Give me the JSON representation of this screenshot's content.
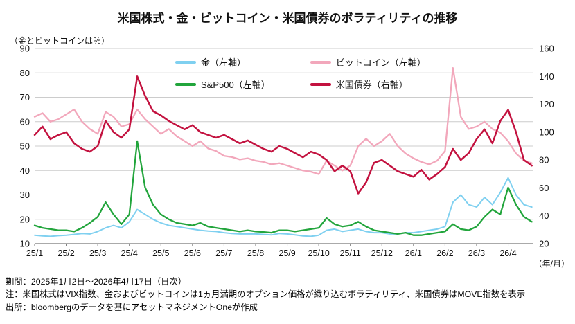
{
  "title": "米国株式・金・ビットコイン・米国債券のボラティリティの推移",
  "axis_note": "（金とビットコインは％）",
  "x_axis_unit": "（年/月）",
  "footer": {
    "line1": "期間：2025年1月2日～2026年4月17日（日次）",
    "line2": "注：米国株式はVIX指数、金およびビットコインは1ヵ月満期のオプション価格が織り込むボラティリティ、米国債券はMOVE指数を表示",
    "line3": "出所：bloombergのデータを基にアセットマネジメントOneが作成"
  },
  "chart_data": {
    "type": "line",
    "title": "米国株式・金・ビットコイン・米国債券のボラティリティの推移",
    "x_labels": [
      "25/1",
      "25/2",
      "25/3",
      "25/4",
      "25/5",
      "25/6",
      "25/7",
      "25/8",
      "25/9",
      "25/10",
      "25/11",
      "25/12",
      "26/1",
      "26/2",
      "26/3",
      "26/4"
    ],
    "points_per_month": 4,
    "left_axis": {
      "label": "（金とビットコインは％）",
      "min": 10,
      "max": 90,
      "ticks": [
        10,
        20,
        30,
        40,
        50,
        60,
        70,
        80,
        90
      ]
    },
    "right_axis": {
      "min": 20,
      "max": 160,
      "ticks": [
        20,
        40,
        60,
        80,
        100,
        120,
        140,
        160
      ]
    },
    "grid": "horizontal",
    "legend_position": "top-inside",
    "series": [
      {
        "key": "gold",
        "name": "金（左軸）",
        "axis": "left",
        "color": "#7fd0f0",
        "values": [
          13.5,
          13.2,
          13.0,
          13.3,
          13.5,
          13.8,
          14.2,
          14.0,
          15.0,
          16.5,
          17.5,
          16.5,
          19.0,
          24.0,
          22.0,
          20.0,
          18.5,
          17.5,
          17.0,
          16.5,
          16.0,
          15.5,
          15.2,
          15.0,
          14.5,
          14.2,
          14.0,
          14.0,
          14.0,
          13.8,
          13.6,
          14.2,
          14.0,
          13.6,
          13.2,
          13.0,
          13.5,
          15.5,
          16.0,
          15.0,
          15.5,
          16.0,
          15.0,
          14.5,
          14.5,
          14.0,
          14.0,
          14.5,
          14.5,
          15.0,
          15.5,
          16.0,
          17.0,
          27.0,
          30.0,
          26.0,
          25.0,
          29.0,
          26.0,
          31.0,
          37.0,
          30.0,
          26.0,
          25.0
        ]
      },
      {
        "key": "bitcoin",
        "name": "ビットコイン（左軸）",
        "axis": "left",
        "color": "#f2a7bb",
        "values": [
          62,
          63.5,
          60,
          61,
          63,
          65,
          60,
          57,
          55,
          64,
          62,
          58,
          59,
          65,
          61,
          58,
          55,
          57,
          54,
          52,
          50,
          52,
          49,
          48,
          46,
          45.5,
          44.5,
          45,
          44,
          43.5,
          42.5,
          43,
          42,
          41,
          40,
          39.5,
          38.5,
          44,
          42,
          40,
          42,
          50,
          53,
          50,
          52,
          55,
          50,
          47,
          45,
          43.5,
          42.5,
          44,
          48,
          82,
          62,
          57,
          58,
          60,
          57,
          55.5,
          52,
          47,
          44,
          43
        ]
      },
      {
        "key": "sp500",
        "name": "S&P500（左軸）",
        "axis": "left",
        "color": "#22a53c",
        "values": [
          17.5,
          16.5,
          16.0,
          15.5,
          15.5,
          15.0,
          16.5,
          18.5,
          21.0,
          27.0,
          22.0,
          18.0,
          22.0,
          52.0,
          33.0,
          26.0,
          22.0,
          20.0,
          18.5,
          18.0,
          17.5,
          18.5,
          17.0,
          16.5,
          16.0,
          15.5,
          15.0,
          15.5,
          15.0,
          14.8,
          14.5,
          15.5,
          15.5,
          15.0,
          15.5,
          16.0,
          16.5,
          20.5,
          18.0,
          17.0,
          17.5,
          19.0,
          17.0,
          15.5,
          15.0,
          14.5,
          14.0,
          14.5,
          13.5,
          13.5,
          14.0,
          14.5,
          15.0,
          18.0,
          16.0,
          15.5,
          17.0,
          21.0,
          24.0,
          22.0,
          33.0,
          26.0,
          21.0,
          19.0
        ]
      },
      {
        "key": "bonds",
        "name": "米国債券（右軸）",
        "axis": "right",
        "color": "#c3123f",
        "values": [
          98,
          104,
          95,
          98,
          100,
          92,
          88,
          86,
          90,
          108,
          100,
          96,
          102,
          140,
          126,
          115,
          112,
          108,
          105,
          102,
          105,
          100,
          98,
          96,
          98,
          95,
          92,
          94,
          91,
          88,
          86,
          90,
          88,
          85,
          82,
          86,
          84,
          80,
          72,
          76,
          72,
          56,
          64,
          78,
          80,
          76,
          72,
          70,
          68,
          73,
          66,
          70,
          75,
          88,
          80,
          85,
          95,
          102,
          92,
          108,
          116,
          100,
          80,
          76
        ]
      }
    ]
  }
}
